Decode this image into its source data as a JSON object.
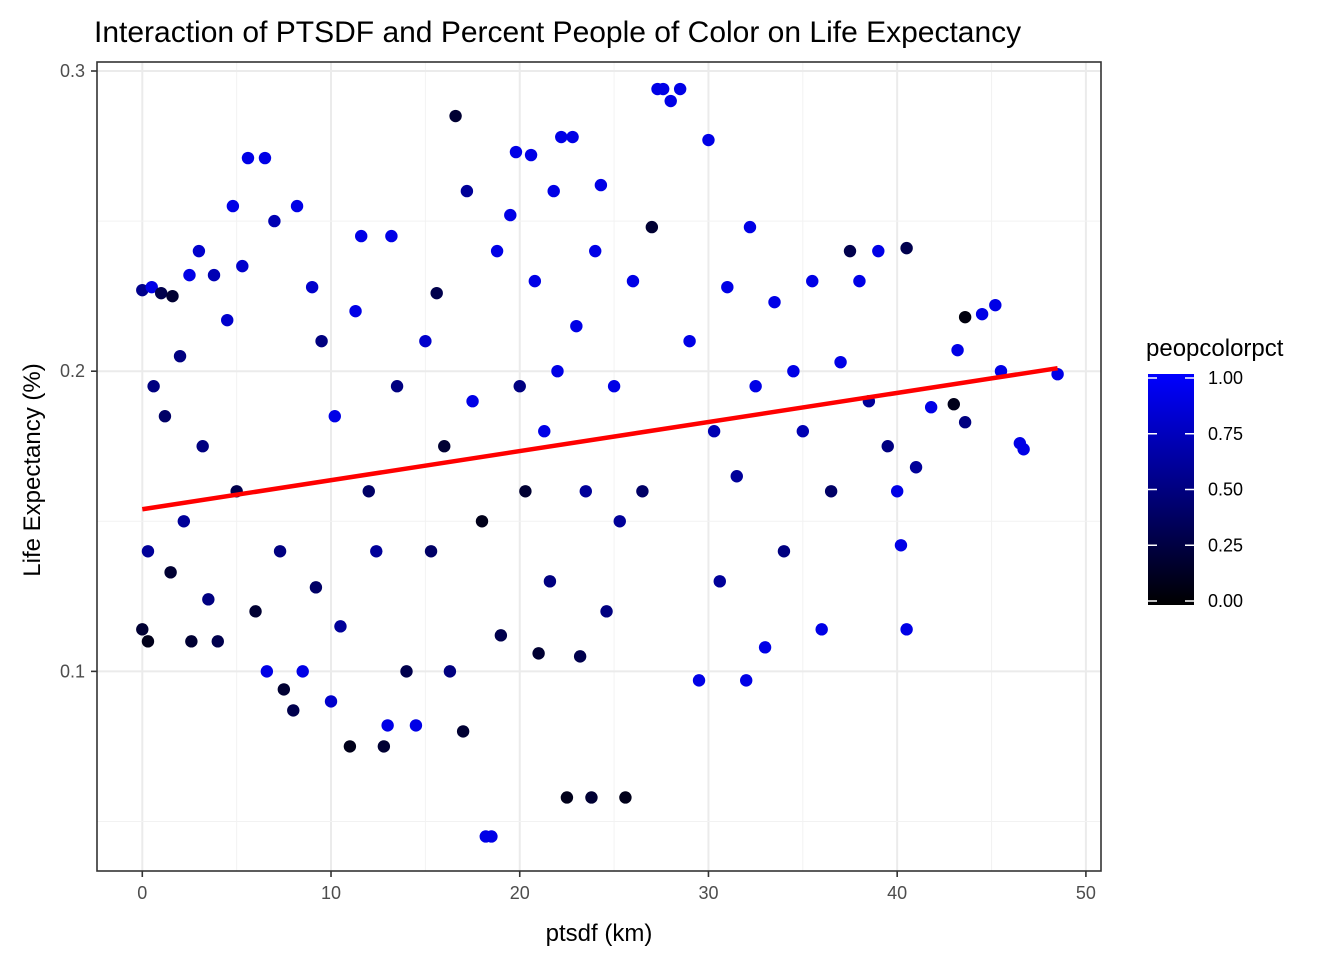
{
  "chart_data": {
    "type": "scatter",
    "title": "Interaction of PTSDF and Percent People of Color on Life Expectancy",
    "xlabel": "ptsdf (km)",
    "ylabel": "Life Expectancy (%)",
    "xlim": [
      -2.4,
      50.8
    ],
    "ylim": [
      0.0335,
      0.303
    ],
    "x_ticks": [
      0,
      10,
      20,
      30,
      40,
      50
    ],
    "y_ticks": [
      0.1,
      0.2,
      0.3
    ],
    "x_tick_labels": [
      "0",
      "10",
      "20",
      "30",
      "40",
      "50"
    ],
    "y_tick_labels": [
      "0.1",
      "0.2",
      "0.3"
    ],
    "grid": true,
    "legend": {
      "title": "peopcolorpct",
      "position": "right",
      "type": "colorbar",
      "range": [
        0,
        1
      ],
      "breaks": [
        0,
        0.25,
        0.5,
        0.75,
        1
      ],
      "labels": [
        "0.00",
        "0.25",
        "0.50",
        "0.75",
        "1.00"
      ],
      "low_color": "#000000",
      "high_color": "#0000ff"
    },
    "fit_line": {
      "color": "#ff0000",
      "x": [
        0,
        48.5
      ],
      "y": [
        0.154,
        0.201
      ]
    },
    "series": [
      {
        "color_variable": "peopcolorpct",
        "points": [
          [
            0.0,
            0.227,
            0.55
          ],
          [
            0.0,
            0.114,
            0.2
          ],
          [
            0.3,
            0.11,
            0.1
          ],
          [
            0.3,
            0.14,
            0.6
          ],
          [
            0.5,
            0.228,
            0.9
          ],
          [
            0.6,
            0.195,
            0.5
          ],
          [
            1.0,
            0.226,
            0.3
          ],
          [
            1.2,
            0.185,
            0.4
          ],
          [
            1.5,
            0.133,
            0.2
          ],
          [
            1.6,
            0.225,
            0.2
          ],
          [
            2.0,
            0.205,
            0.5
          ],
          [
            2.2,
            0.15,
            0.6
          ],
          [
            2.5,
            0.232,
            0.9
          ],
          [
            2.6,
            0.11,
            0.2
          ],
          [
            3.0,
            0.24,
            0.8
          ],
          [
            3.2,
            0.175,
            0.5
          ],
          [
            3.5,
            0.124,
            0.5
          ],
          [
            3.8,
            0.232,
            0.7
          ],
          [
            4.0,
            0.11,
            0.3
          ],
          [
            4.5,
            0.217,
            0.8
          ],
          [
            4.8,
            0.255,
            0.9
          ],
          [
            5.0,
            0.16,
            0.3
          ],
          [
            5.3,
            0.235,
            0.8
          ],
          [
            5.6,
            0.271,
            0.9
          ],
          [
            6.0,
            0.12,
            0.2
          ],
          [
            6.5,
            0.271,
            0.9
          ],
          [
            6.6,
            0.1,
            0.9
          ],
          [
            7.0,
            0.25,
            0.7
          ],
          [
            7.3,
            0.14,
            0.5
          ],
          [
            7.5,
            0.094,
            0.2
          ],
          [
            8.0,
            0.087,
            0.3
          ],
          [
            8.2,
            0.255,
            0.9
          ],
          [
            8.5,
            0.1,
            0.9
          ],
          [
            9.0,
            0.228,
            0.8
          ],
          [
            9.2,
            0.128,
            0.4
          ],
          [
            9.5,
            0.21,
            0.5
          ],
          [
            10.0,
            0.09,
            0.8
          ],
          [
            10.2,
            0.185,
            0.9
          ],
          [
            10.5,
            0.115,
            0.6
          ],
          [
            11.0,
            0.075,
            0.1
          ],
          [
            11.3,
            0.22,
            0.9
          ],
          [
            11.6,
            0.245,
            0.9
          ],
          [
            12.0,
            0.16,
            0.4
          ],
          [
            12.4,
            0.14,
            0.6
          ],
          [
            12.8,
            0.075,
            0.2
          ],
          [
            13.0,
            0.082,
            0.9
          ],
          [
            13.2,
            0.245,
            0.9
          ],
          [
            13.5,
            0.195,
            0.5
          ],
          [
            14.0,
            0.1,
            0.3
          ],
          [
            14.5,
            0.082,
            0.9
          ],
          [
            15.0,
            0.21,
            0.8
          ],
          [
            15.3,
            0.14,
            0.4
          ],
          [
            15.6,
            0.226,
            0.3
          ],
          [
            16.0,
            0.175,
            0.2
          ],
          [
            16.3,
            0.1,
            0.5
          ],
          [
            16.6,
            0.285,
            0.2
          ],
          [
            17.0,
            0.08,
            0.2
          ],
          [
            17.2,
            0.26,
            0.6
          ],
          [
            17.5,
            0.19,
            0.9
          ],
          [
            18.0,
            0.15,
            0.1
          ],
          [
            18.2,
            0.045,
            0.9
          ],
          [
            18.5,
            0.045,
            0.9
          ],
          [
            18.8,
            0.24,
            0.9
          ],
          [
            19.0,
            0.112,
            0.3
          ],
          [
            19.5,
            0.252,
            0.9
          ],
          [
            19.8,
            0.273,
            0.9
          ],
          [
            20.0,
            0.195,
            0.5
          ],
          [
            20.3,
            0.16,
            0.2
          ],
          [
            20.6,
            0.272,
            0.9
          ],
          [
            20.8,
            0.23,
            0.9
          ],
          [
            21.0,
            0.106,
            0.2
          ],
          [
            21.3,
            0.18,
            0.9
          ],
          [
            21.6,
            0.13,
            0.5
          ],
          [
            21.8,
            0.26,
            0.9
          ],
          [
            22.0,
            0.2,
            0.9
          ],
          [
            22.2,
            0.278,
            0.9
          ],
          [
            22.5,
            0.058,
            0.1
          ],
          [
            22.8,
            0.278,
            0.9
          ],
          [
            23.0,
            0.215,
            0.9
          ],
          [
            23.2,
            0.105,
            0.3
          ],
          [
            23.5,
            0.16,
            0.6
          ],
          [
            23.8,
            0.058,
            0.2
          ],
          [
            24.0,
            0.24,
            0.9
          ],
          [
            24.3,
            0.262,
            0.9
          ],
          [
            24.6,
            0.12,
            0.5
          ],
          [
            25.0,
            0.195,
            0.9
          ],
          [
            25.3,
            0.15,
            0.6
          ],
          [
            25.6,
            0.058,
            0.1
          ],
          [
            26.0,
            0.23,
            0.9
          ],
          [
            26.5,
            0.16,
            0.4
          ],
          [
            27.0,
            0.248,
            0.2
          ],
          [
            27.3,
            0.294,
            0.9
          ],
          [
            27.6,
            0.294,
            0.9
          ],
          [
            28.0,
            0.29,
            0.9
          ],
          [
            28.5,
            0.294,
            0.9
          ],
          [
            29.0,
            0.21,
            0.9
          ],
          [
            29.5,
            0.097,
            0.9
          ],
          [
            30.0,
            0.277,
            0.9
          ],
          [
            30.3,
            0.18,
            0.7
          ],
          [
            30.6,
            0.13,
            0.6
          ],
          [
            31.0,
            0.228,
            0.9
          ],
          [
            31.5,
            0.165,
            0.6
          ],
          [
            32.0,
            0.097,
            0.9
          ],
          [
            32.2,
            0.248,
            0.9
          ],
          [
            32.5,
            0.195,
            0.9
          ],
          [
            33.0,
            0.108,
            0.9
          ],
          [
            33.5,
            0.223,
            0.9
          ],
          [
            34.0,
            0.14,
            0.5
          ],
          [
            34.5,
            0.2,
            0.9
          ],
          [
            35.0,
            0.18,
            0.7
          ],
          [
            35.5,
            0.23,
            0.9
          ],
          [
            36.0,
            0.114,
            0.9
          ],
          [
            36.5,
            0.16,
            0.4
          ],
          [
            37.0,
            0.203,
            0.9
          ],
          [
            37.5,
            0.24,
            0.3
          ],
          [
            38.0,
            0.23,
            0.9
          ],
          [
            38.5,
            0.19,
            0.6
          ],
          [
            39.0,
            0.24,
            0.9
          ],
          [
            39.5,
            0.175,
            0.5
          ],
          [
            40.0,
            0.16,
            0.9
          ],
          [
            40.2,
            0.142,
            0.9
          ],
          [
            40.5,
            0.114,
            0.9
          ],
          [
            40.5,
            0.241,
            0.3
          ],
          [
            41.0,
            0.168,
            0.6
          ],
          [
            41.8,
            0.188,
            0.9
          ],
          [
            43.0,
            0.189,
            0.1
          ],
          [
            43.2,
            0.207,
            0.9
          ],
          [
            43.6,
            0.218,
            0.05
          ],
          [
            43.6,
            0.183,
            0.5
          ],
          [
            44.5,
            0.219,
            0.9
          ],
          [
            45.2,
            0.222,
            0.9
          ],
          [
            45.5,
            0.2,
            0.9
          ],
          [
            46.5,
            0.176,
            0.9
          ],
          [
            46.7,
            0.174,
            0.9
          ],
          [
            48.5,
            0.199,
            0.9
          ]
        ]
      }
    ]
  }
}
